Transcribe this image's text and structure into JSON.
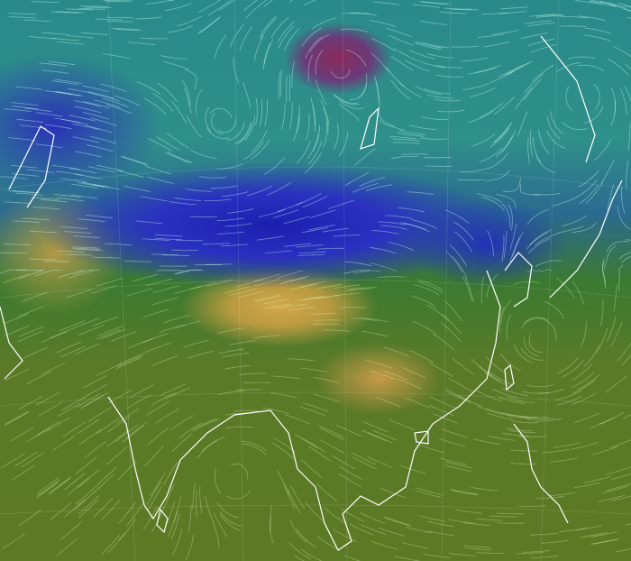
{
  "map": {
    "colors": {
      "ocean_upper": "#2a8a8a",
      "cold_band": "#1a1fb0",
      "low_pressure": "#8a2a5a",
      "land_warm": "#d4a84a",
      "land_green": "#5a7a28",
      "coastline": "#ffffff"
    },
    "icons": [
      "wind-streamlines",
      "coastlines",
      "graticule"
    ]
  }
}
